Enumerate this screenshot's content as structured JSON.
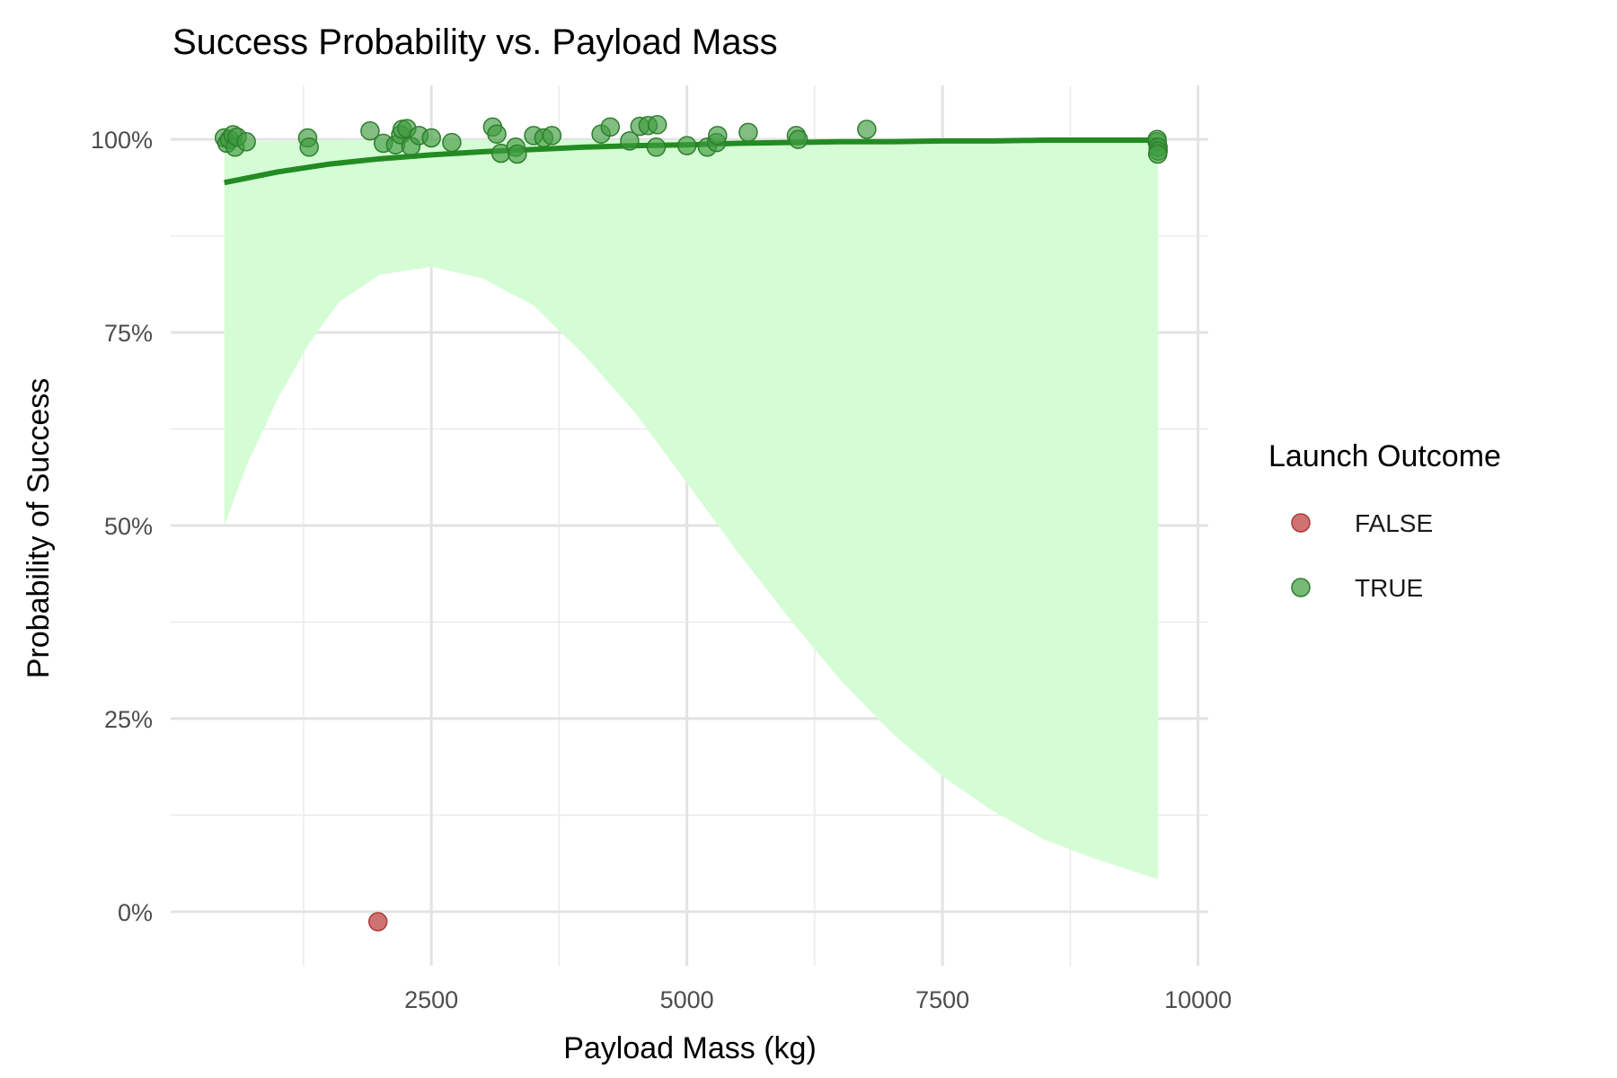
{
  "chart_data": {
    "type": "scatter",
    "title": "Success Probability vs. Payload Mass",
    "xlabel": "Payload Mass (kg)",
    "ylabel": "Probability of Success",
    "xlim": [
      -50,
      10100
    ],
    "ylim": [
      -0.07,
      1.07
    ],
    "x_ticks": [
      2500,
      5000,
      7500,
      10000
    ],
    "x_tick_labels": [
      "2500",
      "5000",
      "7500",
      "10000"
    ],
    "y_ticks": [
      0,
      0.25,
      0.5,
      0.75,
      1.0
    ],
    "y_tick_labels": [
      "0%",
      "25%",
      "50%",
      "75%",
      "100%"
    ],
    "grid": true,
    "legend": {
      "title": "Launch Outcome",
      "placement": "right",
      "entries": [
        {
          "label": "FALSE",
          "color": "#c0504d"
        },
        {
          "label": "TRUE",
          "color": "#3f9b3f"
        }
      ]
    },
    "series": [
      {
        "name": "FALSE",
        "color": "#c0504d",
        "points": [
          {
            "x": 1977,
            "y": -0.013
          }
        ]
      },
      {
        "name": "TRUE",
        "color": "#3f9b3f",
        "points": [
          {
            "x": 475,
            "y": 1.002
          },
          {
            "x": 500,
            "y": 0.995
          },
          {
            "x": 525,
            "y": 1.0
          },
          {
            "x": 560,
            "y": 1.006
          },
          {
            "x": 580,
            "y": 0.99
          },
          {
            "x": 600,
            "y": 1.003
          },
          {
            "x": 690,
            "y": 0.997
          },
          {
            "x": 1290,
            "y": 1.002
          },
          {
            "x": 1305,
            "y": 0.99
          },
          {
            "x": 1900,
            "y": 1.011
          },
          {
            "x": 2030,
            "y": 0.995
          },
          {
            "x": 2150,
            "y": 0.993
          },
          {
            "x": 2200,
            "y": 1.006
          },
          {
            "x": 2215,
            "y": 1.013
          },
          {
            "x": 2260,
            "y": 1.014
          },
          {
            "x": 2300,
            "y": 0.991
          },
          {
            "x": 2380,
            "y": 1.005
          },
          {
            "x": 2500,
            "y": 1.002
          },
          {
            "x": 2700,
            "y": 0.996
          },
          {
            "x": 3100,
            "y": 1.016
          },
          {
            "x": 3140,
            "y": 1.007
          },
          {
            "x": 3180,
            "y": 0.982
          },
          {
            "x": 3325,
            "y": 0.99
          },
          {
            "x": 3340,
            "y": 0.981
          },
          {
            "x": 3500,
            "y": 1.005
          },
          {
            "x": 3600,
            "y": 1.002
          },
          {
            "x": 3680,
            "y": 1.005
          },
          {
            "x": 4160,
            "y": 1.007
          },
          {
            "x": 4250,
            "y": 1.016
          },
          {
            "x": 4440,
            "y": 0.998
          },
          {
            "x": 4540,
            "y": 1.017
          },
          {
            "x": 4620,
            "y": 1.018
          },
          {
            "x": 4710,
            "y": 1.019
          },
          {
            "x": 4700,
            "y": 0.99
          },
          {
            "x": 5000,
            "y": 0.992
          },
          {
            "x": 5200,
            "y": 0.99
          },
          {
            "x": 5290,
            "y": 0.996
          },
          {
            "x": 5300,
            "y": 1.005
          },
          {
            "x": 5600,
            "y": 1.009
          },
          {
            "x": 6070,
            "y": 1.005
          },
          {
            "x": 6090,
            "y": 1.0
          },
          {
            "x": 6760,
            "y": 1.013
          },
          {
            "x": 9600,
            "y": 0.997
          },
          {
            "x": 9600,
            "y": 1.0
          },
          {
            "x": 9610,
            "y": 0.99
          },
          {
            "x": 9610,
            "y": 0.985
          },
          {
            "x": 9605,
            "y": 0.981
          }
        ]
      }
    ],
    "fit_line": {
      "color": "#228b22",
      "x": [
        475,
        1000,
        1500,
        2000,
        2500,
        3000,
        3500,
        4000,
        4500,
        5000,
        5500,
        6000,
        6500,
        7000,
        7500,
        8000,
        8500,
        9000,
        9610
      ],
      "y": [
        0.944,
        0.958,
        0.968,
        0.975,
        0.98,
        0.984,
        0.987,
        0.99,
        0.992,
        0.993,
        0.995,
        0.996,
        0.997,
        0.997,
        0.998,
        0.998,
        0.999,
        0.999,
        0.999
      ]
    },
    "confidence_band": {
      "color": "#d5fdd5",
      "x": [
        475,
        700,
        1000,
        1300,
        1600,
        2000,
        2500,
        3000,
        3500,
        4000,
        4500,
        5000,
        5500,
        6000,
        6500,
        7000,
        7500,
        8000,
        8500,
        9000,
        9610
      ],
      "lower": [
        0.5,
        0.58,
        0.665,
        0.735,
        0.79,
        0.825,
        0.835,
        0.82,
        0.785,
        0.72,
        0.645,
        0.555,
        0.465,
        0.38,
        0.3,
        0.232,
        0.175,
        0.13,
        0.093,
        0.068,
        0.042
      ],
      "upper": [
        0.997,
        0.997,
        0.998,
        0.998,
        0.999,
        0.999,
        0.999,
        0.999,
        0.999,
        0.999,
        0.999,
        0.999,
        0.999,
        0.999,
        0.999,
        0.999,
        0.999,
        0.999,
        0.999,
        0.999,
        0.999
      ]
    }
  }
}
